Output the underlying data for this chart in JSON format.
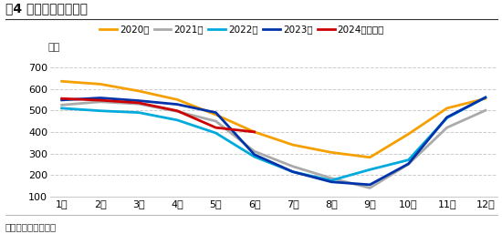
{
  "title": "图4 全国棉花商业库存",
  "footnote": "数据来源：卓创资讯",
  "ylabel": "万吨",
  "months": [
    "1月",
    "2月",
    "3月",
    "4月",
    "5月",
    "6月",
    "7月",
    "8月",
    "9月",
    "10月",
    "11月",
    "12月"
  ],
  "series": [
    {
      "label": "2020年",
      "color": "#F5A000",
      "linewidth": 2.0,
      "data": [
        635,
        622,
        590,
        550,
        480,
        400,
        340,
        305,
        282,
        390,
        510,
        555
      ]
    },
    {
      "label": "2021年",
      "color": "#AAAAAA",
      "linewidth": 2.0,
      "data": [
        525,
        540,
        530,
        495,
        450,
        310,
        240,
        185,
        140,
        250,
        420,
        500
      ]
    },
    {
      "label": "2022年",
      "color": "#00AADD",
      "linewidth": 2.0,
      "data": [
        510,
        498,
        490,
        455,
        395,
        285,
        215,
        175,
        225,
        270,
        465,
        560
      ]
    },
    {
      "label": "2023年",
      "color": "#0033AA",
      "linewidth": 2.0,
      "data": [
        548,
        558,
        545,
        528,
        490,
        295,
        215,
        168,
        155,
        252,
        468,
        560
      ]
    },
    {
      "label": "2024年及预测",
      "color": "#CC0000",
      "linewidth": 2.0,
      "data": [
        555,
        547,
        535,
        498,
        420,
        400,
        null,
        null,
        null,
        null,
        null,
        null
      ]
    }
  ],
  "ylim": [
    100,
    730
  ],
  "yticks": [
    100,
    200,
    300,
    400,
    500,
    600,
    700
  ],
  "grid_color": "#CCCCCC",
  "bg_color": "#FFFFFF",
  "title_fontsize": 10,
  "legend_fontsize": 7.5,
  "tick_fontsize": 8
}
